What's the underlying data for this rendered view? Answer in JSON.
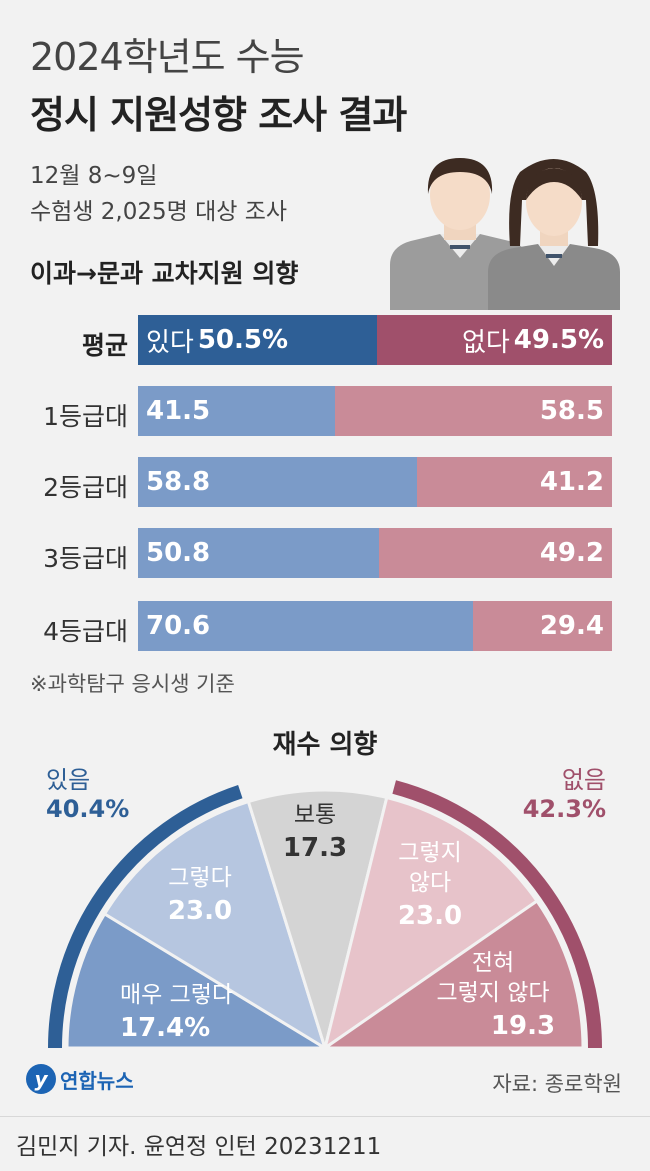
{
  "header": {
    "title_line1": "2024학년도 수능",
    "title_line2": "정시 지원성향 조사 결과",
    "date": "12월 8~9일",
    "subject": "수험생 2,025명 대상 조사"
  },
  "colors": {
    "blue_dark": "#2e5f96",
    "blue_light": "#7b9bc8",
    "red_dark": "#a0506b",
    "red_light": "#c98b98",
    "neutral": "#d4d4d4"
  },
  "chart_data": [
    {
      "type": "bar",
      "title": "이과→문과 교차지원 의향",
      "categories": [
        "평균",
        "1등급대",
        "2등급대",
        "3등급대",
        "4등급대"
      ],
      "series": [
        {
          "name": "있다",
          "values": [
            50.5,
            41.5,
            58.8,
            50.8,
            70.6
          ]
        },
        {
          "name": "없다",
          "values": [
            49.5,
            58.5,
            41.2,
            49.2,
            29.4
          ]
        }
      ],
      "value_labels": {
        "있다": [
          "50.5%",
          "41.5",
          "58.8",
          "50.8",
          "70.6"
        ],
        "없다": [
          "49.5%",
          "58.5",
          "41.2",
          "49.2",
          "29.4"
        ]
      },
      "note": "※과학탐구 응시생 기준"
    },
    {
      "type": "pie",
      "title": "재수 의향",
      "slices": [
        {
          "label": "매우 그렇다",
          "value": 17.4,
          "value_label": "17.4%"
        },
        {
          "label": "그렇다",
          "value": 23.0,
          "value_label": "23.0"
        },
        {
          "label": "보통",
          "value": 17.3,
          "value_label": "17.3"
        },
        {
          "label": "그렇지 않다",
          "value": 23.0,
          "value_label": "23.0"
        },
        {
          "label": "전혀 그렇지 않다",
          "value": 19.3,
          "value_label": "19.3"
        }
      ],
      "groups": [
        {
          "name": "있음",
          "value": 40.4,
          "value_label": "40.4%"
        },
        {
          "name": "없음",
          "value": 42.3,
          "value_label": "42.3%"
        }
      ]
    }
  ],
  "footer": {
    "logo_text": "연합뉴스",
    "source": "자료: 종로학원",
    "credit": "김민지 기자. 윤연정 인턴  20231211"
  }
}
